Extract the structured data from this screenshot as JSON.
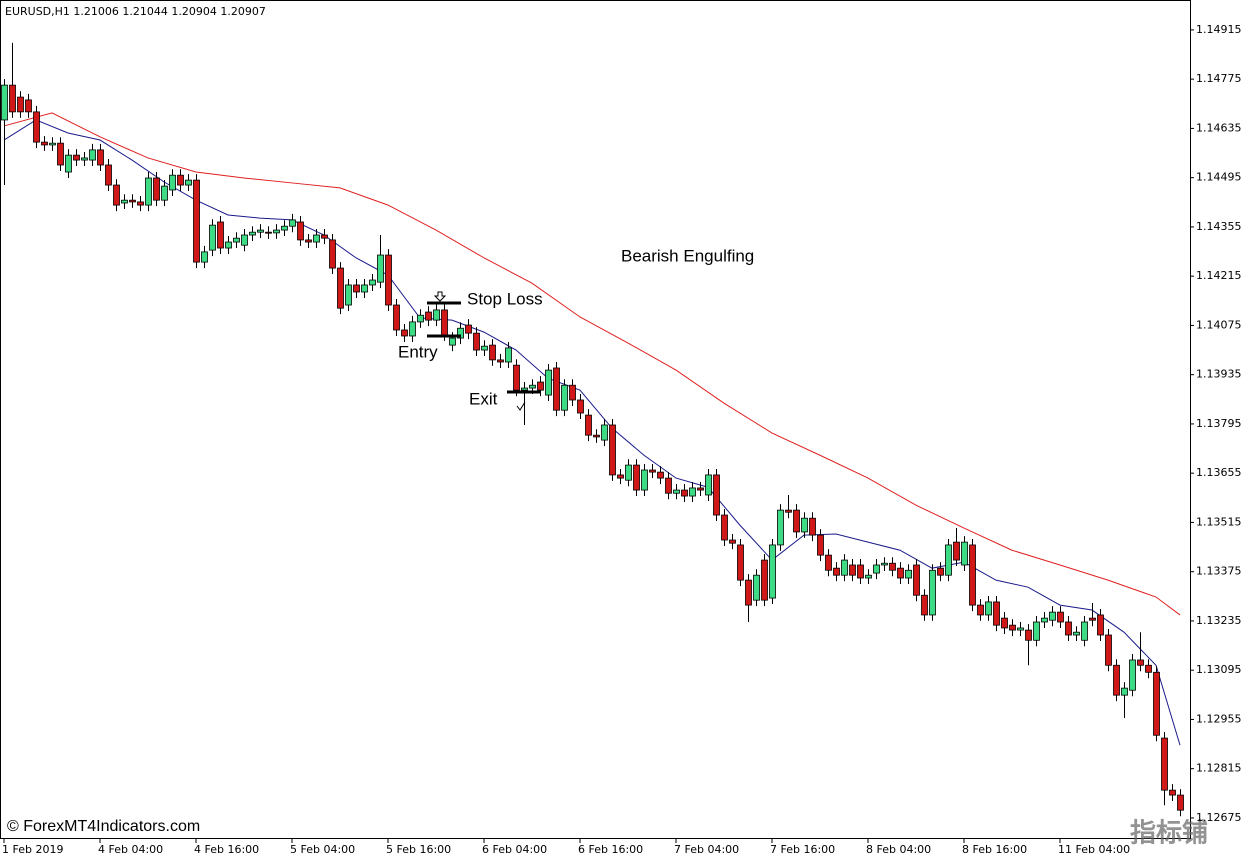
{
  "chart_data": {
    "type": "candlestick",
    "title": "EURUSD,H1  1.21006 1.21044 1.20904 1.20907",
    "source": "© ForexMT4Indicators.com",
    "watermark": "指标铺",
    "annotations": [
      "Bearish Engulfing",
      "Stop Loss",
      "Entry",
      "Exit"
    ],
    "up_color": "#3ddc84",
    "down_color": "#d01818",
    "wick_color": "#000000",
    "xlim": [
      -0.5,
      148.25
    ],
    "xticks": [
      {
        "value": 0,
        "label": "1 Feb 2019"
      },
      {
        "value": 12,
        "label": "4 Feb 04:00"
      },
      {
        "value": 24,
        "label": "4 Feb 16:00"
      },
      {
        "value": 36,
        "label": "5 Feb 04:00"
      },
      {
        "value": 48,
        "label": "5 Feb 16:00"
      },
      {
        "value": 60,
        "label": "6 Feb 04:00"
      },
      {
        "value": 72,
        "label": "6 Feb 16:00"
      },
      {
        "value": 84,
        "label": "7 Feb 04:00"
      },
      {
        "value": 96,
        "label": "7 Feb 16:00"
      },
      {
        "value": 108,
        "label": "8 Feb 04:00"
      },
      {
        "value": 120,
        "label": "8 Feb 16:00"
      },
      {
        "value": 132,
        "label": "11 Feb 04:00"
      }
    ],
    "ylim": [
      1.12618,
      1.15
    ],
    "yticks": [
      1.14915,
      1.14775,
      1.14635,
      1.14495,
      1.14355,
      1.14215,
      1.14075,
      1.13935,
      1.13795,
      1.13655,
      1.13515,
      1.13375,
      1.13235,
      1.13095,
      1.12955,
      1.12815,
      1.12675
    ],
    "open": [
      1.14659,
      1.14758,
      1.14724,
      1.14716,
      1.14682,
      1.14596,
      1.14588,
      1.14593,
      1.14511,
      1.14559,
      1.14545,
      1.14545,
      1.14574,
      1.14531,
      1.14474,
      1.14423,
      1.14431,
      1.14426,
      1.14417,
      1.14494,
      1.14431,
      1.1446,
      1.14502,
      1.14474,
      1.14488,
      1.14255,
      1.14289,
      1.14369,
      1.14295,
      1.14312,
      1.14303,
      1.14332,
      1.1434,
      1.1434,
      1.14338,
      1.14346,
      1.14357,
      1.14369,
      1.14318,
      1.14312,
      1.14332,
      1.14318,
      1.14238,
      1.14133,
      1.1419,
      1.1417,
      1.1419,
      1.14198,
      1.14275,
      1.14133,
      1.14062,
      1.14045,
      1.14085,
      1.14113,
      1.1409,
      1.14119,
      1.14019,
      1.14039,
      1.14076,
      1.14053,
      1.14005,
      1.14019,
      1.13977,
      1.13971,
      1.13962,
      1.13891,
      1.13897,
      1.13914,
      1.13877,
      1.13954,
      1.13834,
      1.13905,
      1.13863,
      1.1382,
      1.13763,
      1.13749,
      1.13792,
      1.1365,
      1.13635,
      1.13678,
      1.13607,
      1.13664,
      1.13658,
      1.13641,
      1.13598,
      1.13607,
      1.1359,
      1.13613,
      1.13593,
      1.1365,
      1.13536,
      1.13465,
      1.13451,
      1.13351,
      1.13294,
      1.13408,
      1.133,
      1.13451,
      1.1355,
      1.1355,
      1.13488,
      1.13527,
      1.13479,
      1.13422,
      1.13385,
      1.13365,
      1.13394,
      1.13394,
      1.13357,
      1.13371,
      1.13394,
      1.13399,
      1.13385,
      1.13357,
      1.13394,
      1.13308,
      1.13252,
      1.13385,
      1.13365,
      1.13459,
      1.13394,
      1.13451,
      1.1328,
      1.13252,
      1.13289,
      1.13243,
      1.13223,
      1.13209,
      1.13209,
      1.1318,
      1.13232,
      1.13237,
      1.1326,
      1.13232,
      1.13195,
      1.1318,
      1.13243,
      1.13252,
      1.13195,
      1.13109,
      1.13024,
      1.13038,
      1.13124,
      1.13109,
      1.13089,
      1.12902,
      1.12754,
      1.1274
    ],
    "high": [
      1.14775,
      1.14878,
      1.14741,
      1.14733,
      1.14699,
      1.14613,
      1.1461,
      1.1461,
      1.14576,
      1.14576,
      1.14568,
      1.14591,
      1.14591,
      1.14548,
      1.14491,
      1.14448,
      1.14448,
      1.14443,
      1.14511,
      1.14511,
      1.14488,
      1.14519,
      1.14519,
      1.14505,
      1.14505,
      1.14301,
      1.14377,
      1.14386,
      1.14329,
      1.1434,
      1.14349,
      1.14357,
      1.14363,
      1.14357,
      1.14363,
      1.14374,
      1.14392,
      1.14386,
      1.14335,
      1.14349,
      1.14349,
      1.14335,
      1.14255,
      1.14207,
      1.14207,
      1.14207,
      1.14221,
      1.14332,
      1.14292,
      1.1415,
      1.14079,
      1.14102,
      1.14121,
      1.1413,
      1.14136,
      1.14136,
      1.14056,
      1.14084,
      1.14093,
      1.1407,
      1.14033,
      1.14036,
      1.13994,
      1.14028,
      1.13979,
      1.13914,
      1.13922,
      1.13931,
      1.13965,
      1.13971,
      1.13922,
      1.13922,
      1.1388,
      1.13837,
      1.1378,
      1.13809,
      1.13809,
      1.13667,
      1.13695,
      1.13695,
      1.13681,
      1.13681,
      1.13675,
      1.13658,
      1.13624,
      1.13624,
      1.1363,
      1.1363,
      1.13667,
      1.13667,
      1.13553,
      1.13482,
      1.13468,
      1.13368,
      1.13382,
      1.13425,
      1.13468,
      1.13567,
      1.13593,
      1.13567,
      1.13544,
      1.13544,
      1.13496,
      1.13439,
      1.13402,
      1.13425,
      1.13411,
      1.13411,
      1.13382,
      1.13411,
      1.13416,
      1.13416,
      1.13402,
      1.13396,
      1.13411,
      1.13325,
      1.13396,
      1.13402,
      1.13468,
      1.13499,
      1.13476,
      1.13468,
      1.13297,
      1.13306,
      1.13306,
      1.1326,
      1.1324,
      1.13232,
      1.13226,
      1.13249,
      1.1326,
      1.13277,
      1.13277,
      1.13249,
      1.1322,
      1.13249,
      1.13286,
      1.13269,
      1.13212,
      1.13126,
      1.13061,
      1.13141,
      1.13203,
      1.13126,
      1.13106,
      1.12919,
      1.12771,
      1.12757
    ],
    "low": [
      1.14474,
      1.14665,
      1.14665,
      1.14665,
      1.14579,
      1.14571,
      1.14571,
      1.14514,
      1.14494,
      1.14528,
      1.14528,
      1.14528,
      1.14514,
      1.14457,
      1.144,
      1.14406,
      1.14409,
      1.144,
      1.144,
      1.14414,
      1.14414,
      1.14443,
      1.14457,
      1.14457,
      1.14238,
      1.14238,
      1.14272,
      1.14278,
      1.14278,
      1.14295,
      1.14286,
      1.14315,
      1.14323,
      1.14321,
      1.14321,
      1.14329,
      1.1434,
      1.14301,
      1.14295,
      1.14295,
      1.14306,
      1.14221,
      1.14107,
      1.14116,
      1.14153,
      1.14153,
      1.14173,
      1.14181,
      1.14116,
      1.14045,
      1.14028,
      1.14028,
      1.14068,
      1.14073,
      1.14073,
      1.14031,
      1.14002,
      1.14022,
      1.14036,
      1.13988,
      1.13988,
      1.1396,
      1.13954,
      1.13954,
      1.13874,
      1.13792,
      1.1388,
      1.13874,
      1.1386,
      1.13817,
      1.13817,
      1.13846,
      1.13809,
      1.13746,
      1.13741,
      1.13732,
      1.13633,
      1.13624,
      1.13618,
      1.1359,
      1.1359,
      1.13641,
      1.13624,
      1.13581,
      1.13581,
      1.13573,
      1.13573,
      1.1359,
      1.13576,
      1.13519,
      1.13448,
      1.13439,
      1.13334,
      1.13232,
      1.13277,
      1.13277,
      1.13283,
      1.13434,
      1.13527,
      1.13471,
      1.13471,
      1.13462,
      1.13405,
      1.13362,
      1.13348,
      1.13348,
      1.13348,
      1.1334,
      1.1334,
      1.13354,
      1.13377,
      1.13362,
      1.1334,
      1.1334,
      1.13291,
      1.13235,
      1.13235,
      1.13348,
      1.13348,
      1.13391,
      1.13377,
      1.13263,
      1.13235,
      1.13235,
      1.13206,
      1.13198,
      1.13192,
      1.13192,
      1.13109,
      1.13163,
      1.13215,
      1.1322,
      1.13215,
      1.13178,
      1.13178,
      1.13163,
      1.1322,
      1.13178,
      1.13092,
      1.13007,
      1.12959,
      1.13021,
      1.13092,
      1.13072,
      1.12893,
      1.12711,
      1.12723,
      1.1268
    ],
    "close": [
      1.14758,
      1.14682,
      1.14682,
      1.14682,
      1.14596,
      1.14588,
      1.14593,
      1.14531,
      1.14559,
      1.14545,
      1.14551,
      1.14574,
      1.14531,
      1.14474,
      1.14417,
      1.14431,
      1.14426,
      1.14417,
      1.14494,
      1.14431,
      1.14471,
      1.14502,
      1.14474,
      1.14488,
      1.14255,
      1.14284,
      1.1436,
      1.14295,
      1.14312,
      1.14323,
      1.14332,
      1.1434,
      1.14346,
      1.14338,
      1.14346,
      1.14357,
      1.14375,
      1.14318,
      1.14312,
      1.14332,
      1.14323,
      1.14238,
      1.14124,
      1.1419,
      1.1417,
      1.1419,
      1.14204,
      1.14275,
      1.14133,
      1.14062,
      1.14045,
      1.14085,
      1.14104,
      1.1409,
      1.14119,
      1.14048,
      1.14039,
      1.14067,
      1.14053,
      1.14005,
      1.14016,
      1.13977,
      1.13971,
      1.14011,
      1.13891,
      1.13897,
      1.13905,
      1.13891,
      1.13948,
      1.13834,
      1.13905,
      1.13863,
      1.13826,
      1.13763,
      1.13758,
      1.13792,
      1.1365,
      1.13641,
      1.13678,
      1.13607,
      1.13664,
      1.13658,
      1.13641,
      1.13598,
      1.13607,
      1.1359,
      1.13613,
      1.13607,
      1.1365,
      1.13536,
      1.13465,
      1.13456,
      1.13351,
      1.1328,
      1.13365,
      1.13294,
      1.13451,
      1.1355,
      1.13544,
      1.13488,
      1.13527,
      1.13479,
      1.13422,
      1.13379,
      1.13365,
      1.13408,
      1.13365,
      1.13357,
      1.13365,
      1.13394,
      1.13399,
      1.13379,
      1.13357,
      1.13379,
      1.13308,
      1.13252,
      1.13379,
      1.13365,
      1.13451,
      1.13408,
      1.13459,
      1.1328,
      1.13252,
      1.13289,
      1.13223,
      1.13215,
      1.13209,
      1.13215,
      1.1318,
      1.13232,
      1.13243,
      1.1326,
      1.13232,
      1.13195,
      1.13203,
      1.13232,
      1.13237,
      1.13195,
      1.13109,
      1.13024,
      1.13044,
      1.13124,
      1.13109,
      1.13089,
      1.1291,
      1.12754,
      1.1274,
      1.12697
    ],
    "lines": [
      {
        "color": "#e02020",
        "x": [
          0,
          6,
          12,
          18,
          24,
          30,
          36,
          42,
          48,
          54,
          60,
          66,
          72,
          78,
          84,
          90,
          96,
          102,
          108,
          114,
          120,
          126,
          132,
          138,
          144,
          147
        ],
        "values": [
          1.14642,
          1.14679,
          1.14611,
          1.14551,
          1.14511,
          1.14494,
          1.1448,
          1.14466,
          1.14417,
          1.14346,
          1.14267,
          1.14195,
          1.14099,
          1.14025,
          1.13948,
          1.13854,
          1.13769,
          1.13706,
          1.13641,
          1.13564,
          1.13499,
          1.13436,
          1.13394,
          1.13351,
          1.13303,
          1.13252
        ]
      },
      {
        "color": "#1a1a8c",
        "x": [
          0,
          4,
          8,
          12,
          16,
          20,
          24,
          28,
          32,
          36,
          40,
          44,
          48,
          52,
          56,
          60,
          64,
          68,
          72,
          76,
          80,
          84,
          88,
          92,
          96,
          100,
          104,
          108,
          112,
          116,
          120,
          124,
          128,
          132,
          136,
          140,
          144,
          147
        ],
        "values": [
          1.14602,
          1.14659,
          1.14622,
          1.14602,
          1.14545,
          1.14483,
          1.14431,
          1.14389,
          1.1438,
          1.14375,
          1.14332,
          1.14267,
          1.14218,
          1.14096,
          1.1409,
          1.14056,
          1.14005,
          1.13925,
          1.13891,
          1.13783,
          1.13706,
          1.13641,
          1.13615,
          1.13507,
          1.13408,
          1.13479,
          1.13482,
          1.13459,
          1.13436,
          1.13385,
          1.13402,
          1.13351,
          1.13331,
          1.1328,
          1.13266,
          1.13203,
          1.13109,
          1.12882
        ]
      }
    ]
  }
}
